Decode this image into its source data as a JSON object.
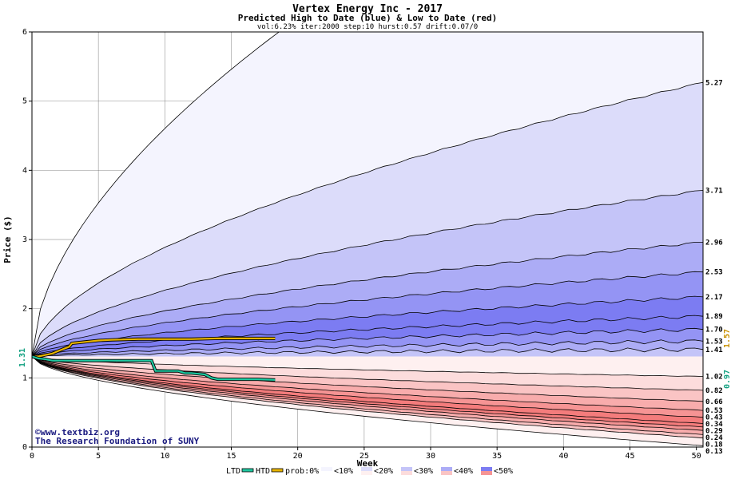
{
  "chart_data": {
    "type": "area",
    "title": "Vertex Energy Inc - 2017",
    "subtitle": "Predicted High to Date (blue) &  Low to Date (red)",
    "params": "vol:6.23% iter:2000 step:10 hurst:0.57 drift:0.07/0",
    "xlabel": "Week",
    "ylabel": "Price ($)",
    "xlim": [
      0,
      50.5
    ],
    "ylim": [
      0,
      6
    ],
    "x_ticks": [
      0,
      5,
      10,
      15,
      20,
      25,
      30,
      35,
      40,
      45,
      50
    ],
    "y_ticks": [
      0,
      1,
      2,
      3,
      4,
      5,
      6
    ],
    "grid": true,
    "start_price": 1.31,
    "start_label": "1.31",
    "upper_curves_end": [
      5.27,
      3.71,
      2.96,
      2.53,
      2.17,
      1.89,
      1.7,
      1.53,
      1.41
    ],
    "lower_curves_end": [
      1.02,
      0.82,
      0.66,
      0.53,
      0.43,
      0.34,
      0.29,
      0.24,
      0.18,
      0.13
    ],
    "right_labels": [
      "5.27",
      "3.71",
      "2.96",
      "2.53",
      "2.17",
      "1.89",
      "1.70",
      "1.53",
      "1.41",
      "1.02",
      "0.82",
      "0.66",
      "0.53",
      "0.43",
      "0.34",
      "0.29",
      "0.24",
      "0.18",
      "0.13"
    ],
    "ltd_series": {
      "name": "LTD",
      "x": [
        0,
        0.5,
        1,
        1.5,
        2,
        3,
        4,
        5,
        6,
        7,
        8,
        9,
        9.3,
        10,
        11,
        11.5,
        12,
        13,
        13.5,
        14,
        15,
        16,
        17,
        18.3
      ],
      "y": [
        1.31,
        1.28,
        1.27,
        1.25,
        1.25,
        1.25,
        1.25,
        1.25,
        1.25,
        1.25,
        1.25,
        1.25,
        1.1,
        1.1,
        1.1,
        1.07,
        1.07,
        1.05,
        1.0,
        0.98,
        0.98,
        0.98,
        0.98,
        0.97
      ]
    },
    "htd_series": {
      "name": "HTD",
      "x": [
        0,
        0.5,
        1,
        1.5,
        2,
        2.8,
        3,
        4,
        5,
        6,
        8,
        10,
        12,
        14,
        16,
        18.3
      ],
      "y": [
        1.31,
        1.31,
        1.33,
        1.35,
        1.39,
        1.45,
        1.5,
        1.52,
        1.54,
        1.55,
        1.56,
        1.56,
        1.56,
        1.57,
        1.57,
        1.57
      ]
    },
    "ltd_end_label": "0.97",
    "htd_end_label": "1.57",
    "legend": [
      "LTD",
      "HTD",
      "prob:0%",
      "<10%",
      "<20%",
      "<30%",
      "<40%",
      "<50%"
    ],
    "legend_placement": "bottom",
    "watermark": [
      "©www.textbiz.org",
      "The Research Foundation of SUNY"
    ],
    "colors": {
      "ltd": "#1ec8a0",
      "htd": "#e8b400",
      "htd_label": "#c89000",
      "ltd_label": "#10a080",
      "upper_bands": [
        "#f4f4fe",
        "#dcdcfa",
        "#c4c4f8",
        "#acacf6",
        "#9494f4",
        "#7c7cf2"
      ],
      "lower_bands": [
        "#fef0f0",
        "#fcdcdc",
        "#fac4c4",
        "#f8acac",
        "#f69494",
        "#f47c7c"
      ]
    }
  }
}
